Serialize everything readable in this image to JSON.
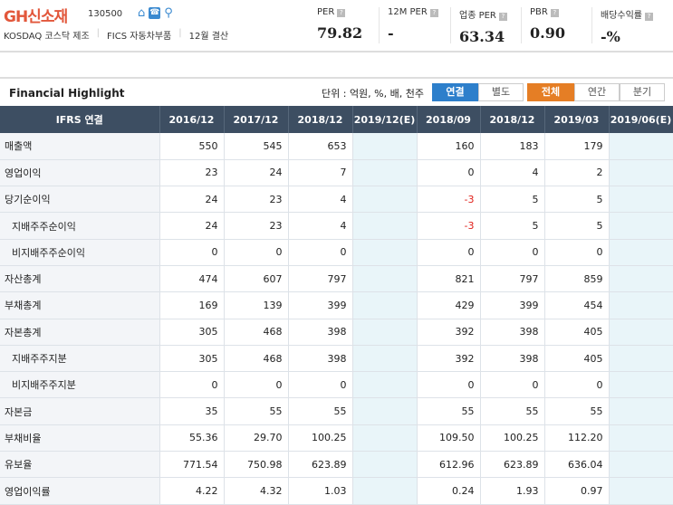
{
  "company": {
    "name": "GH신소재",
    "code": "130500",
    "icons": [
      "home-icon",
      "phone-icon",
      "location-icon"
    ],
    "tags": [
      "KOSDAQ  코스닥 제조",
      "FICS 자동차부품",
      "12월 결산"
    ]
  },
  "metrics": [
    {
      "label": "PER",
      "value": "79.82"
    },
    {
      "label": "12M PER",
      "value": "-"
    },
    {
      "label": "업종 PER",
      "value": "63.34"
    },
    {
      "label": "PBR",
      "value": "0.90"
    },
    {
      "label": "배당수익률",
      "value": "-%"
    }
  ],
  "section": {
    "title": "Financial Highlight",
    "unit": "단위 : 억원, %, 배, 천주",
    "buttons": [
      {
        "label": "연결",
        "active": true
      },
      {
        "label": "별도"
      },
      {
        "label": "전체",
        "active": true
      },
      {
        "label": "연간"
      },
      {
        "label": "분기"
      }
    ]
  },
  "colors": {
    "header": "#3d4e62",
    "blue": "#2d7fcb",
    "orange": "#e57e25",
    "negative": "#e0201a",
    "estimate_bg": "#e9f5f9"
  },
  "table": {
    "headers": [
      "IFRS 연결",
      "2016/12",
      "2017/12",
      "2018/12",
      "2019/12(E)",
      "2018/09",
      "2018/12",
      "2019/03",
      "2019/06(E)"
    ],
    "rows": [
      {
        "label": "매출액",
        "cells": [
          "550",
          "545",
          "653",
          "",
          "160",
          "183",
          "179",
          ""
        ]
      },
      {
        "label": "영업이익",
        "cells": [
          "23",
          "24",
          "7",
          "",
          "0",
          "4",
          "2",
          ""
        ]
      },
      {
        "label": "당기순이익",
        "cells": [
          "24",
          "23",
          "4",
          "",
          "-3",
          "5",
          "5",
          ""
        ]
      },
      {
        "label": "지배주주순이익",
        "indent": true,
        "cells": [
          "24",
          "23",
          "4",
          "",
          "-3",
          "5",
          "5",
          ""
        ]
      },
      {
        "label": "비지배주주순이익",
        "indent": true,
        "cells": [
          "0",
          "0",
          "0",
          "",
          "0",
          "0",
          "0",
          ""
        ]
      },
      {
        "label": "자산총계",
        "cells": [
          "474",
          "607",
          "797",
          "",
          "821",
          "797",
          "859",
          ""
        ]
      },
      {
        "label": "부채총계",
        "cells": [
          "169",
          "139",
          "399",
          "",
          "429",
          "399",
          "454",
          ""
        ]
      },
      {
        "label": "자본총계",
        "cells": [
          "305",
          "468",
          "398",
          "",
          "392",
          "398",
          "405",
          ""
        ]
      },
      {
        "label": "지배주주지분",
        "indent": true,
        "cells": [
          "305",
          "468",
          "398",
          "",
          "392",
          "398",
          "405",
          ""
        ]
      },
      {
        "label": "비지배주주지분",
        "indent": true,
        "cells": [
          "0",
          "0",
          "0",
          "",
          "0",
          "0",
          "0",
          ""
        ]
      },
      {
        "label": "자본금",
        "cells": [
          "35",
          "55",
          "55",
          "",
          "55",
          "55",
          "55",
          ""
        ]
      },
      {
        "label": "부채비율",
        "cells": [
          "55.36",
          "29.70",
          "100.25",
          "",
          "109.50",
          "100.25",
          "112.20",
          ""
        ]
      },
      {
        "label": "유보율",
        "cells": [
          "771.54",
          "750.98",
          "623.89",
          "",
          "612.96",
          "623.89",
          "636.04",
          ""
        ]
      },
      {
        "label": "영업이익률",
        "cells": [
          "4.22",
          "4.32",
          "1.03",
          "",
          "0.24",
          "1.93",
          "0.97",
          ""
        ]
      }
    ]
  }
}
